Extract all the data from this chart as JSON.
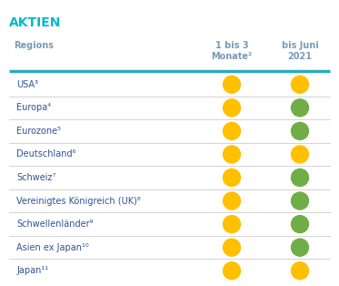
{
  "title": "AKTIEN",
  "title_color": "#00BBCC",
  "col1_header": "Regions",
  "col2_header": "1 bis 3\nMonate²",
  "col3_header": "bis Juni\n2021",
  "header_color": "#7A9BB5",
  "rows": [
    {
      "label": "USA³",
      "col2": "orange",
      "col3": "orange"
    },
    {
      "label": "Europa⁴",
      "col2": "orange",
      "col3": "green"
    },
    {
      "label": "Eurozone⁵",
      "col2": "orange",
      "col3": "green"
    },
    {
      "label": "Deutschland⁶",
      "col2": "orange",
      "col3": "orange"
    },
    {
      "label": "Schweiz⁷",
      "col2": "orange",
      "col3": "green"
    },
    {
      "label": "Vereinigtes Königreich (UK)⁸",
      "col2": "orange",
      "col3": "green"
    },
    {
      "label": "Schwellenländer⁹",
      "col2": "orange",
      "col3": "green"
    },
    {
      "label": "Asien ex Japan¹⁰",
      "col2": "orange",
      "col3": "green"
    },
    {
      "label": "Japan¹¹",
      "col2": "orange",
      "col3": "orange"
    }
  ],
  "orange_color": "#FFC000",
  "green_color": "#70AD47",
  "separator_color": "#2AABBF",
  "row_line_color": "#CCCCCC",
  "label_color": "#2F5496",
  "background_color": "#FFFFFF",
  "fig_width": 3.73,
  "fig_height": 3.14,
  "dpi": 100
}
